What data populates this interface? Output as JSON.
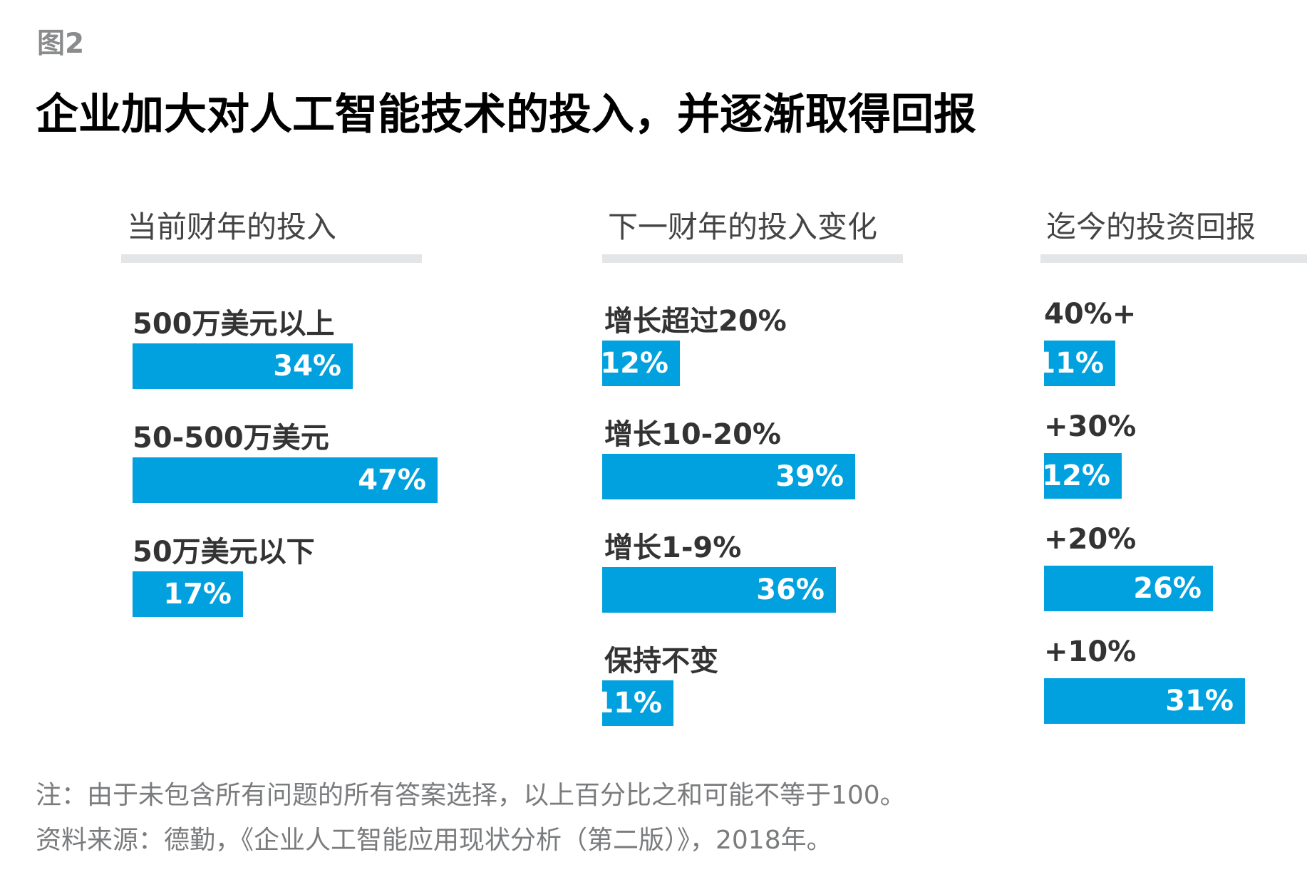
{
  "figure_label": "图2",
  "title": "企业加大对人工智能技术的投入，并逐渐取得回报",
  "colors": {
    "bar": "#00a1de",
    "rule": "#e4e5e7"
  },
  "chart_data": [
    {
      "type": "bar",
      "orientation": "horizontal",
      "title": "当前财年的投入",
      "unit": "%",
      "categories": [
        "500万美元以上",
        "50-500万美元",
        "50万美元以下"
      ],
      "values": [
        34,
        47,
        17
      ],
      "value_labels": [
        "34%",
        "47%",
        "17%"
      ]
    },
    {
      "type": "bar",
      "orientation": "horizontal",
      "title": "下一财年的投入变化",
      "unit": "%",
      "categories": [
        "增长超过20%",
        "增长10-20%",
        "增长1-9%",
        "保持不变"
      ],
      "values": [
        12,
        39,
        36,
        11
      ],
      "value_labels": [
        "12%",
        "39%",
        "36%",
        "11%"
      ]
    },
    {
      "type": "bar",
      "orientation": "horizontal",
      "title": "迄今的投资回报",
      "unit": "%",
      "categories": [
        "40%+",
        "+30%",
        "+20%",
        "+10%"
      ],
      "values": [
        11,
        12,
        26,
        31
      ],
      "value_labels": [
        "11%",
        "12%",
        "26%",
        "31%"
      ]
    }
  ],
  "notes": {
    "note": "注：由于未包含所有问题的所有答案选择，以上百分比之和可能不等于100。",
    "source": "资料来源：德勤，《企业人工智能应用现状分析（第二版）》，2018年。"
  }
}
